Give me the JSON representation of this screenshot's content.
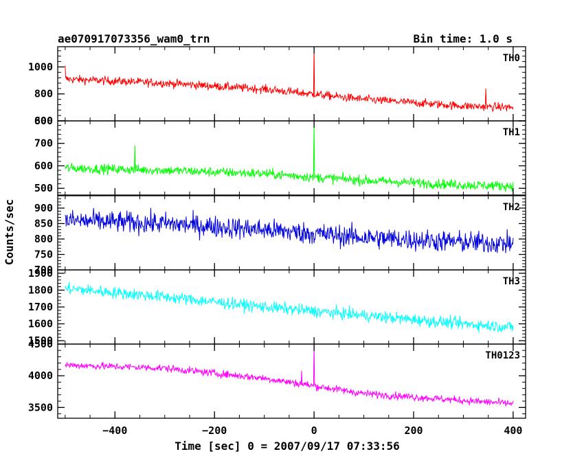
{
  "header": {
    "object_name": "ae070917073356_wam0_trn",
    "bin_time": "Bin time: 1.0 s"
  },
  "chart_data": {
    "type": "line",
    "title": "ae070917073356_wam0_trn",
    "subtitle": "Bin time: 1.0 s",
    "xlabel": "Time [sec] 0 = 2007/09/17 07:33:56",
    "ylabel": "Counts/sec",
    "xlim": [
      -515,
      425
    ],
    "x_ticks": [
      -400,
      -200,
      0,
      200,
      400
    ],
    "x_tick_labels": [
      "−400",
      "−200",
      "0",
      "200",
      "400"
    ],
    "x_range": [
      -500,
      400
    ],
    "bin_time_s": 1.0,
    "grid": false,
    "panels": [
      {
        "name": "TH0",
        "color": "#ff0000",
        "ylim": [
          600,
          1150
        ],
        "y_ticks": [
          600,
          800,
          1000
        ],
        "y_tick_labels": [
          "600",
          "800",
          "1000"
        ],
        "trend_points": [
          [
            -500,
            910
          ],
          [
            -300,
            880
          ],
          [
            -100,
            835
          ],
          [
            100,
            760
          ],
          [
            300,
            710
          ],
          [
            400,
            700
          ]
        ],
        "noise_amplitude": 40,
        "spikes": [
          {
            "x": 0,
            "y": 1150
          },
          {
            "x": -500,
            "y": 1010
          },
          {
            "x": 345,
            "y": 840
          }
        ]
      },
      {
        "name": "TH1",
        "color": "#00ff00",
        "ylim": [
          470,
          800
        ],
        "y_ticks": [
          500,
          600,
          700,
          800
        ],
        "y_tick_labels": [
          "500",
          "600",
          "700",
          "800"
        ],
        "trend_points": [
          [
            -500,
            590
          ],
          [
            -300,
            580
          ],
          [
            -100,
            565
          ],
          [
            100,
            535
          ],
          [
            300,
            515
          ],
          [
            400,
            510
          ]
        ],
        "noise_amplitude": 28,
        "spikes": [
          {
            "x": 0,
            "y": 800
          },
          {
            "x": -360,
            "y": 690
          }
        ]
      },
      {
        "name": "TH2",
        "color": "#0000dd",
        "ylim": [
          700,
          940
        ],
        "y_ticks": [
          700,
          750,
          800,
          850,
          900
        ],
        "y_tick_labels": [
          "700",
          "750",
          "800",
          "850",
          "900"
        ],
        "trend_points": [
          [
            -500,
            860
          ],
          [
            -300,
            850
          ],
          [
            -100,
            830
          ],
          [
            100,
            805
          ],
          [
            300,
            790
          ],
          [
            400,
            785
          ]
        ],
        "noise_amplitude": 45,
        "spikes": []
      },
      {
        "name": "TH3",
        "color": "#00ffff",
        "ylim": [
          1480,
          1920
        ],
        "y_ticks": [
          1500,
          1600,
          1700,
          1800,
          1900
        ],
        "y_tick_labels": [
          "1500",
          "1600",
          "1700",
          "1800",
          "1900"
        ],
        "trend_points": [
          [
            -500,
            1810
          ],
          [
            -300,
            1760
          ],
          [
            -100,
            1700
          ],
          [
            100,
            1650
          ],
          [
            300,
            1600
          ],
          [
            400,
            1580
          ]
        ],
        "noise_amplitude": 45,
        "spikes": []
      },
      {
        "name": "TH0123",
        "color": "#ff00ff",
        "ylim": [
          3330,
          4500
        ],
        "y_ticks": [
          3500,
          4000,
          4500
        ],
        "y_tick_labels": [
          "3500",
          "4000",
          "4500"
        ],
        "trend_points": [
          [
            -500,
            4170
          ],
          [
            -300,
            4120
          ],
          [
            -100,
            3960
          ],
          [
            100,
            3720
          ],
          [
            300,
            3610
          ],
          [
            400,
            3560
          ]
        ],
        "noise_amplitude": 75,
        "spikes": [
          {
            "x": 0,
            "y": 4500
          },
          {
            "x": -25,
            "y": 4080
          }
        ]
      }
    ]
  }
}
